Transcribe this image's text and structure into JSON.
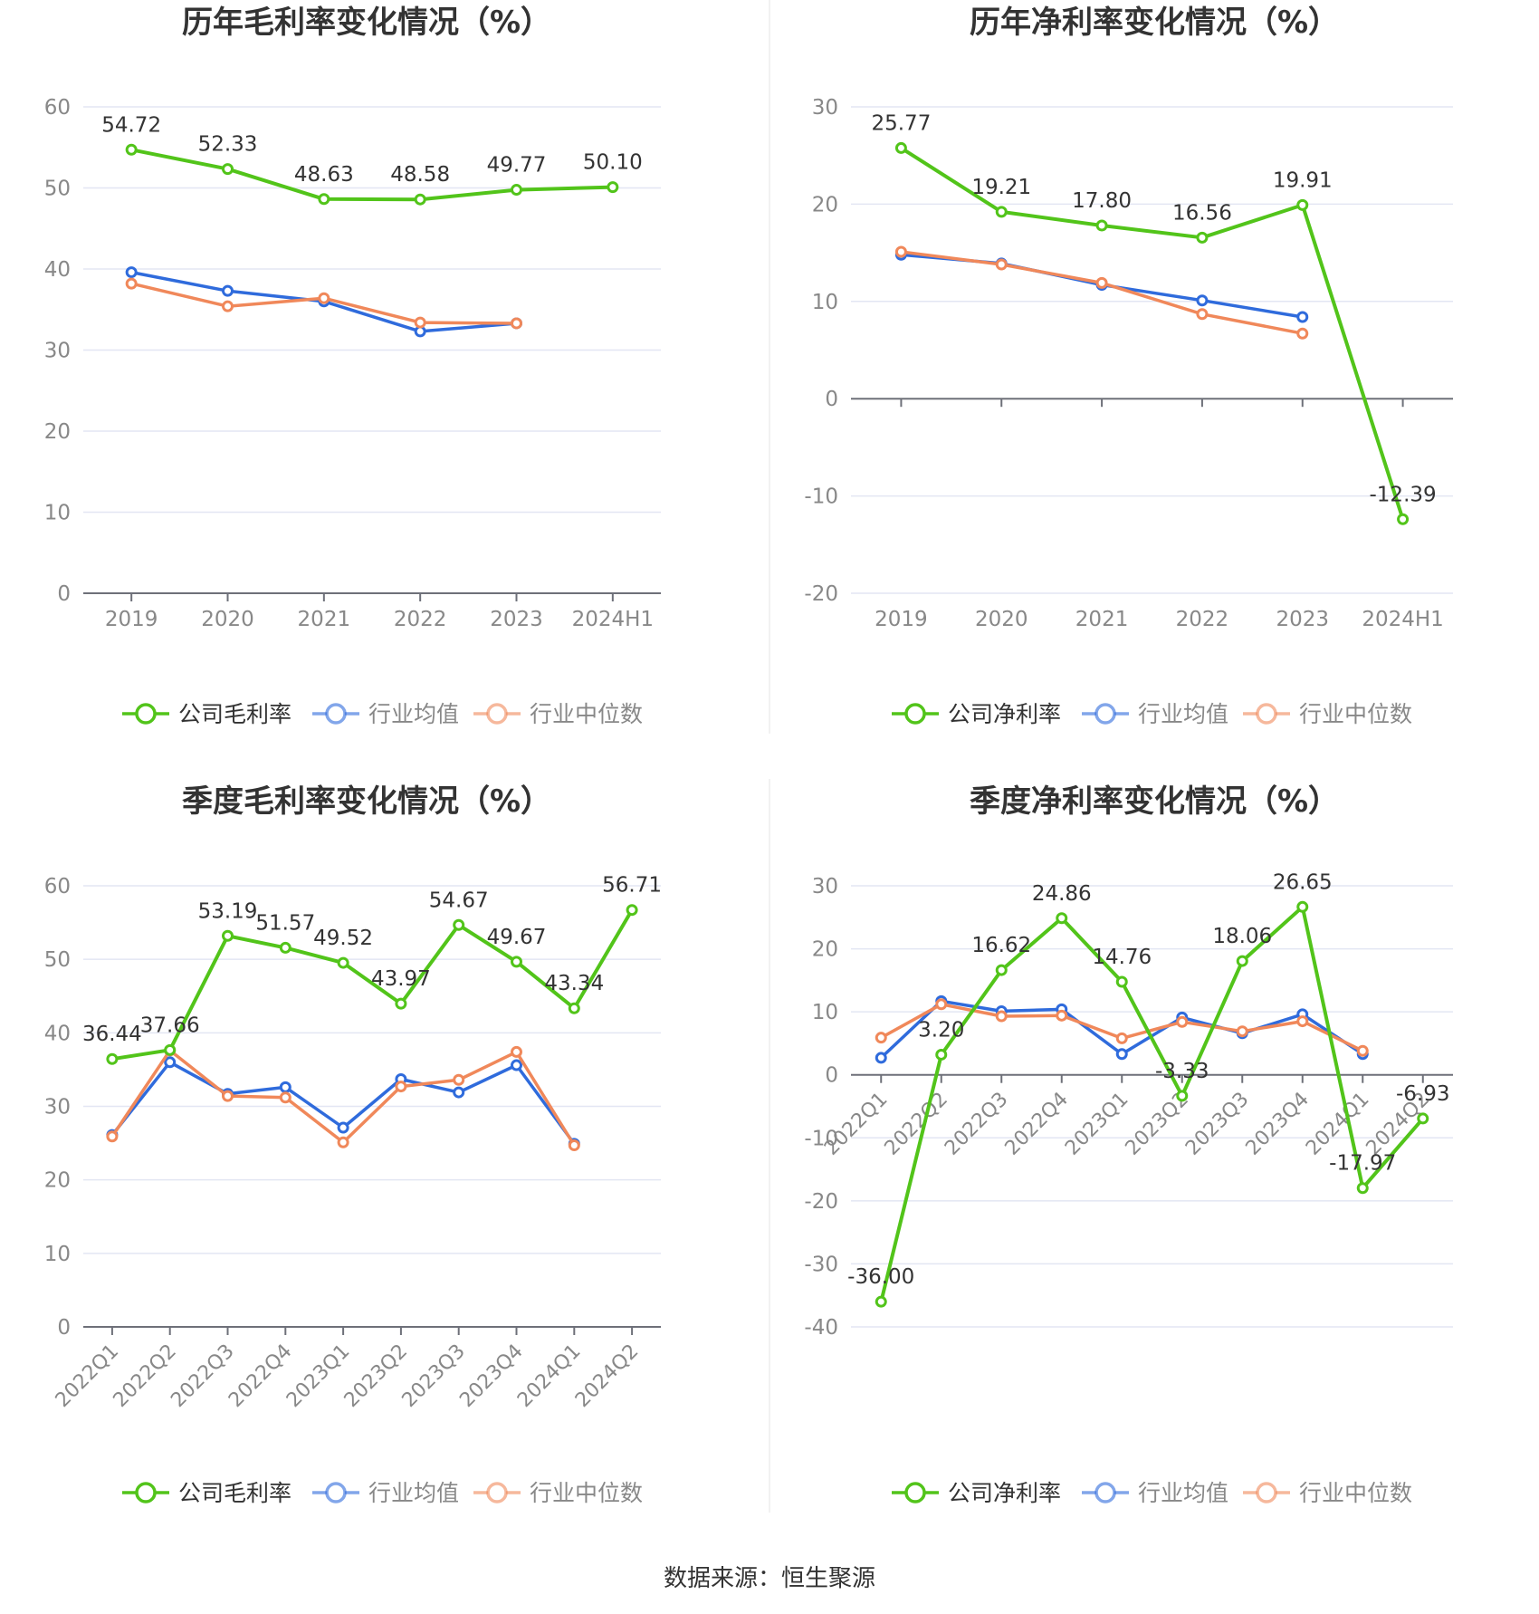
{
  "footer": {
    "source": "数据来源：恒生聚源"
  },
  "colors": {
    "company": "#52c41a",
    "industry_avg": "#2f6bdc",
    "industry_median": "#f0885a",
    "grid": "#e3e6f3",
    "axis": "#6e7079",
    "text": "#333333",
    "label": "#888888"
  },
  "chart_data": [
    {
      "type": "line",
      "title": "历年毛利率变化情况（%）",
      "categories": [
        "2019",
        "2020",
        "2021",
        "2022",
        "2023",
        "2024H1"
      ],
      "ylim": [
        0,
        60
      ],
      "yticks": [
        0,
        10,
        20,
        30,
        40,
        50,
        60
      ],
      "series": [
        {
          "name": "公司毛利率",
          "values": [
            54.72,
            52.33,
            48.63,
            48.58,
            49.77,
            50.1
          ],
          "labels": [
            "54.72",
            "52.33",
            "48.63",
            "48.58",
            "49.77",
            "50.10"
          ]
        },
        {
          "name": "行业均值",
          "values": [
            39.6,
            37.3,
            36.0,
            32.3,
            33.3,
            null
          ]
        },
        {
          "name": "行业中位数",
          "values": [
            38.2,
            35.4,
            36.4,
            33.4,
            33.3,
            null
          ]
        }
      ]
    },
    {
      "type": "line",
      "title": "历年净利率变化情况（%）",
      "categories": [
        "2019",
        "2020",
        "2021",
        "2022",
        "2023",
        "2024H1"
      ],
      "ylim": [
        -20,
        30
      ],
      "yticks": [
        -20,
        -10,
        0,
        10,
        20,
        30
      ],
      "series": [
        {
          "name": "公司净利率",
          "values": [
            25.77,
            19.21,
            17.8,
            16.56,
            19.91,
            -12.39
          ],
          "labels": [
            "25.77",
            "19.21",
            "17.80",
            "16.56",
            "19.91",
            "-12.39"
          ]
        },
        {
          "name": "行业均值",
          "values": [
            14.8,
            13.9,
            11.7,
            10.1,
            8.4,
            null
          ]
        },
        {
          "name": "行业中位数",
          "values": [
            15.1,
            13.8,
            11.9,
            8.7,
            6.7,
            null
          ]
        }
      ]
    },
    {
      "type": "line",
      "title": "季度毛利率变化情况（%）",
      "categories": [
        "2022Q1",
        "2022Q2",
        "2022Q3",
        "2022Q4",
        "2023Q1",
        "2023Q2",
        "2023Q3",
        "2023Q4",
        "2024Q1",
        "2024Q2"
      ],
      "ylim": [
        0,
        60
      ],
      "yticks": [
        0,
        10,
        20,
        30,
        40,
        50,
        60
      ],
      "series": [
        {
          "name": "公司毛利率",
          "values": [
            36.44,
            37.66,
            53.19,
            51.57,
            49.52,
            43.97,
            54.67,
            49.67,
            43.34,
            56.71
          ],
          "labels": [
            "36.44",
            "37.66",
            "53.19",
            "51.57",
            "49.52",
            "43.97",
            "54.67",
            "49.67",
            "43.34",
            "56.71"
          ]
        },
        {
          "name": "行业均值",
          "values": [
            26.1,
            36.0,
            31.7,
            32.6,
            27.1,
            33.7,
            31.9,
            35.6,
            24.9,
            null
          ]
        },
        {
          "name": "行业中位数",
          "values": [
            25.9,
            37.6,
            31.4,
            31.2,
            25.1,
            32.7,
            33.6,
            37.4,
            24.7,
            null
          ]
        }
      ]
    },
    {
      "type": "line",
      "title": "季度净利率变化情况（%）",
      "categories": [
        "2022Q1",
        "2022Q2",
        "2022Q3",
        "2022Q4",
        "2023Q1",
        "2023Q2",
        "2023Q3",
        "2023Q4",
        "2024Q1",
        "2024Q2"
      ],
      "ylim": [
        -40,
        30
      ],
      "yticks": [
        -40,
        -30,
        -20,
        -10,
        0,
        10,
        20,
        30
      ],
      "series": [
        {
          "name": "公司净利率",
          "values": [
            -36.0,
            3.2,
            16.62,
            24.86,
            14.76,
            -3.33,
            18.06,
            26.65,
            -17.97,
            -6.93
          ],
          "labels": [
            "-36.00",
            "3.20",
            "16.62",
            "24.86",
            "14.76",
            "-3.33",
            "18.06",
            "26.65",
            "-17.97",
            "-6.93"
          ]
        },
        {
          "name": "行业均值",
          "values": [
            2.7,
            11.7,
            10.1,
            10.4,
            3.3,
            9.1,
            6.6,
            9.6,
            3.3,
            null
          ]
        },
        {
          "name": "行业中位数",
          "values": [
            5.9,
            11.2,
            9.3,
            9.4,
            5.8,
            8.4,
            6.9,
            8.5,
            3.8,
            null
          ]
        }
      ]
    }
  ]
}
